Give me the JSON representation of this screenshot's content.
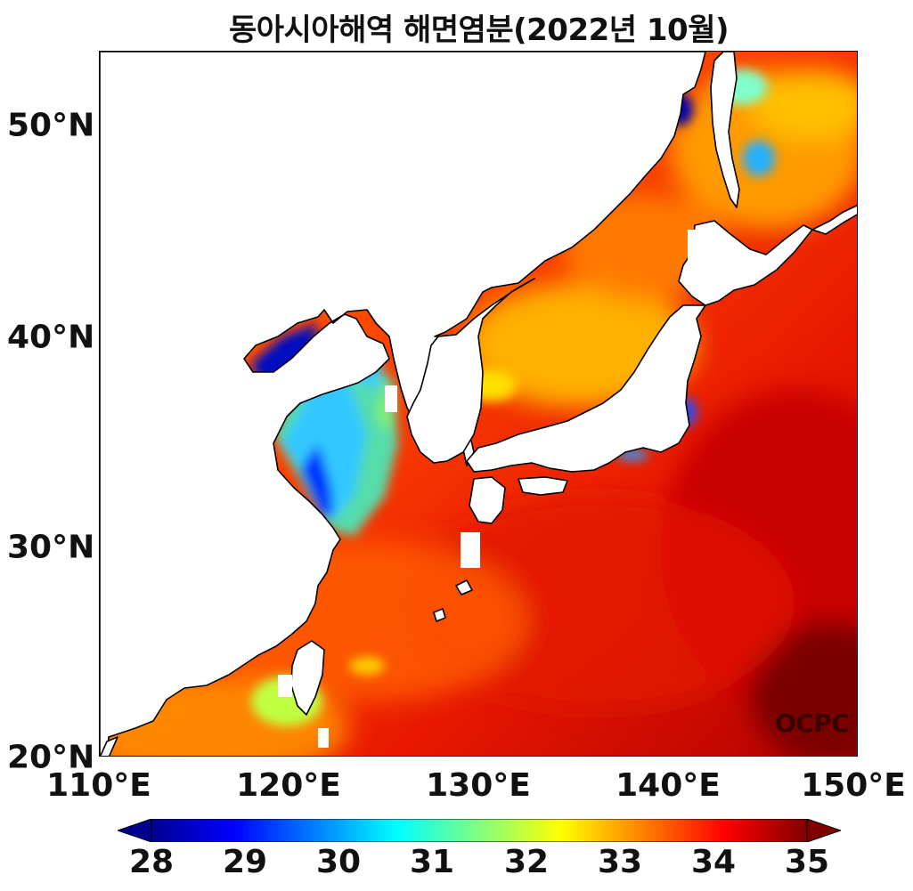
{
  "title": "동아시아해역 해면염분(2022년 10월)",
  "credit": "OCPC",
  "latitude_labels": [
    "50°N",
    "40°N",
    "30°N",
    "20°N"
  ],
  "longitude_labels": [
    "110°E",
    "120°E",
    "130°E",
    "140°E",
    "150°E"
  ],
  "map": {
    "region": "East Asian Seas",
    "lon_range": [
      110,
      150
    ],
    "lat_range": [
      20,
      53
    ],
    "variable": "sea surface salinity",
    "colormap": "jet",
    "land_color": "#ffffff",
    "coastline_color": "#000000"
  },
  "colorbar": {
    "min": 28,
    "max": 35,
    "extend": "both",
    "ticks": [
      "28",
      "29",
      "30",
      "31",
      "32",
      "33",
      "34",
      "35"
    ]
  }
}
